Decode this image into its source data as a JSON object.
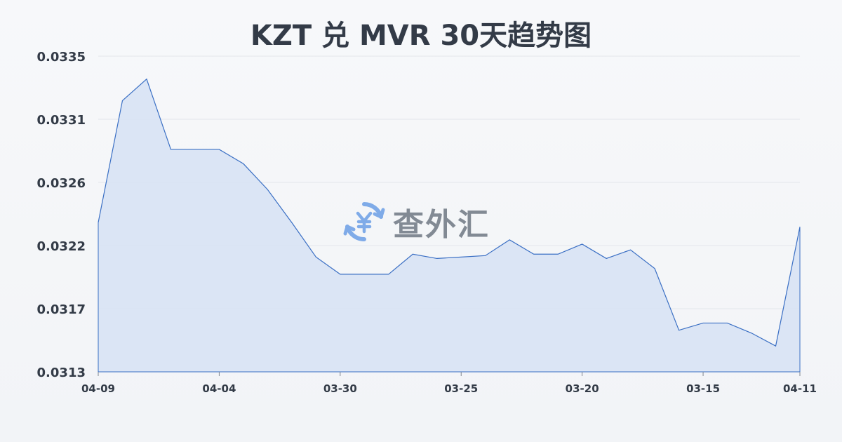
{
  "title": "KZT 兑 MVR 30天趋势图",
  "watermark": {
    "text": "查外汇",
    "icon": "yen-exchange-icon",
    "icon_color": "#6b9ee6"
  },
  "colors": {
    "line": "#3a6fc4",
    "fill": "#d6e2f5",
    "grid": "#e3e6eb",
    "text": "#333b47",
    "axis": "#7d8590"
  },
  "chart_data": {
    "type": "area",
    "title": "KZT 兑 MVR 30天趋势图",
    "xlabel": "",
    "ylabel": "",
    "ylim": [
      0.0313,
      0.0335
    ],
    "y_ticks": [
      "0.0335",
      "0.0331",
      "0.0326",
      "0.0322",
      "0.0317",
      "0.0313"
    ],
    "y_tick_values": [
      0.0335,
      0.03306,
      0.03262,
      0.03218,
      0.03174,
      0.0313
    ],
    "x_tick_labels": [
      "04-09",
      "04-04",
      "03-30",
      "03-25",
      "03-20",
      "03-15",
      "04-11"
    ],
    "x_tick_indices": [
      0,
      5,
      10,
      15,
      20,
      25,
      29
    ],
    "grid": true,
    "series": [
      {
        "values": [
          0.03234,
          0.03319,
          0.03334,
          0.03285,
          0.03285,
          0.03285,
          0.03275,
          0.03257,
          0.03234,
          0.0321,
          0.03198,
          0.03198,
          0.03198,
          0.03212,
          0.03209,
          0.0321,
          0.03211,
          0.03222,
          0.03212,
          0.03212,
          0.03219,
          0.03209,
          0.03215,
          0.03202,
          0.03159,
          0.03164,
          0.03164,
          0.03157,
          0.03148,
          0.03231
        ]
      }
    ]
  }
}
